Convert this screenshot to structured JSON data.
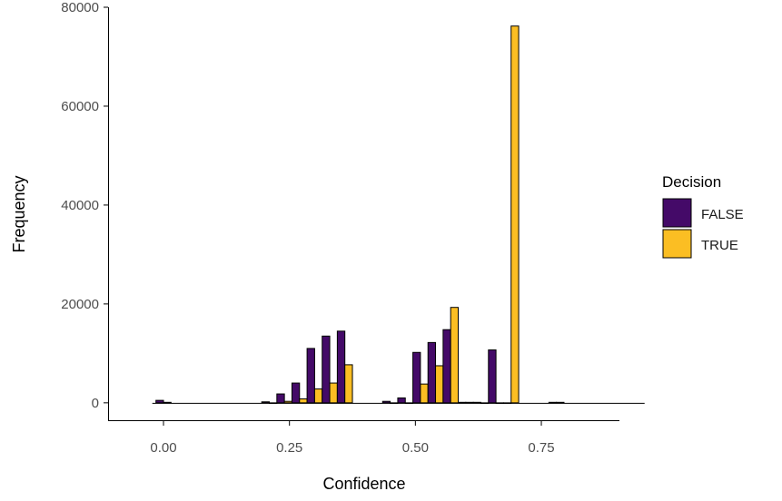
{
  "chart_data": {
    "type": "bar",
    "title": "",
    "xlabel": "Confidence",
    "ylabel": "Frequency",
    "xlim": [
      -0.11,
      0.905
    ],
    "ylim": [
      -3700,
      80000
    ],
    "xticks": [
      0.0,
      0.25,
      0.5,
      0.75
    ],
    "xtick_labels": [
      "0.00",
      "0.25",
      "0.50",
      "0.75"
    ],
    "yticks": [
      0,
      20000,
      40000,
      60000,
      80000
    ],
    "ytick_labels": [
      "0",
      "20000",
      "40000",
      "60000",
      "80000"
    ],
    "grid": false,
    "legend": {
      "title": "Decision",
      "position": "right"
    },
    "bin_width": 0.03,
    "bin_centers": [
      0.0,
      0.21,
      0.24,
      0.27,
      0.3,
      0.33,
      0.36,
      0.45,
      0.48,
      0.51,
      0.54,
      0.57,
      0.6,
      0.63,
      0.66,
      0.69,
      0.78
    ],
    "series": [
      {
        "name": "FALSE",
        "color": "#440a68",
        "values": [
          500,
          200,
          1800,
          4000,
          11000,
          13500,
          14500,
          300,
          1000,
          10200,
          12200,
          14800,
          100,
          100,
          10700,
          0,
          100
        ]
      },
      {
        "name": "TRUE",
        "color": "#fbbe23",
        "values": [
          100,
          0,
          300,
          800,
          2800,
          4000,
          7700,
          0,
          0,
          3800,
          7500,
          19300,
          100,
          0,
          0,
          76200,
          100
        ]
      }
    ]
  }
}
